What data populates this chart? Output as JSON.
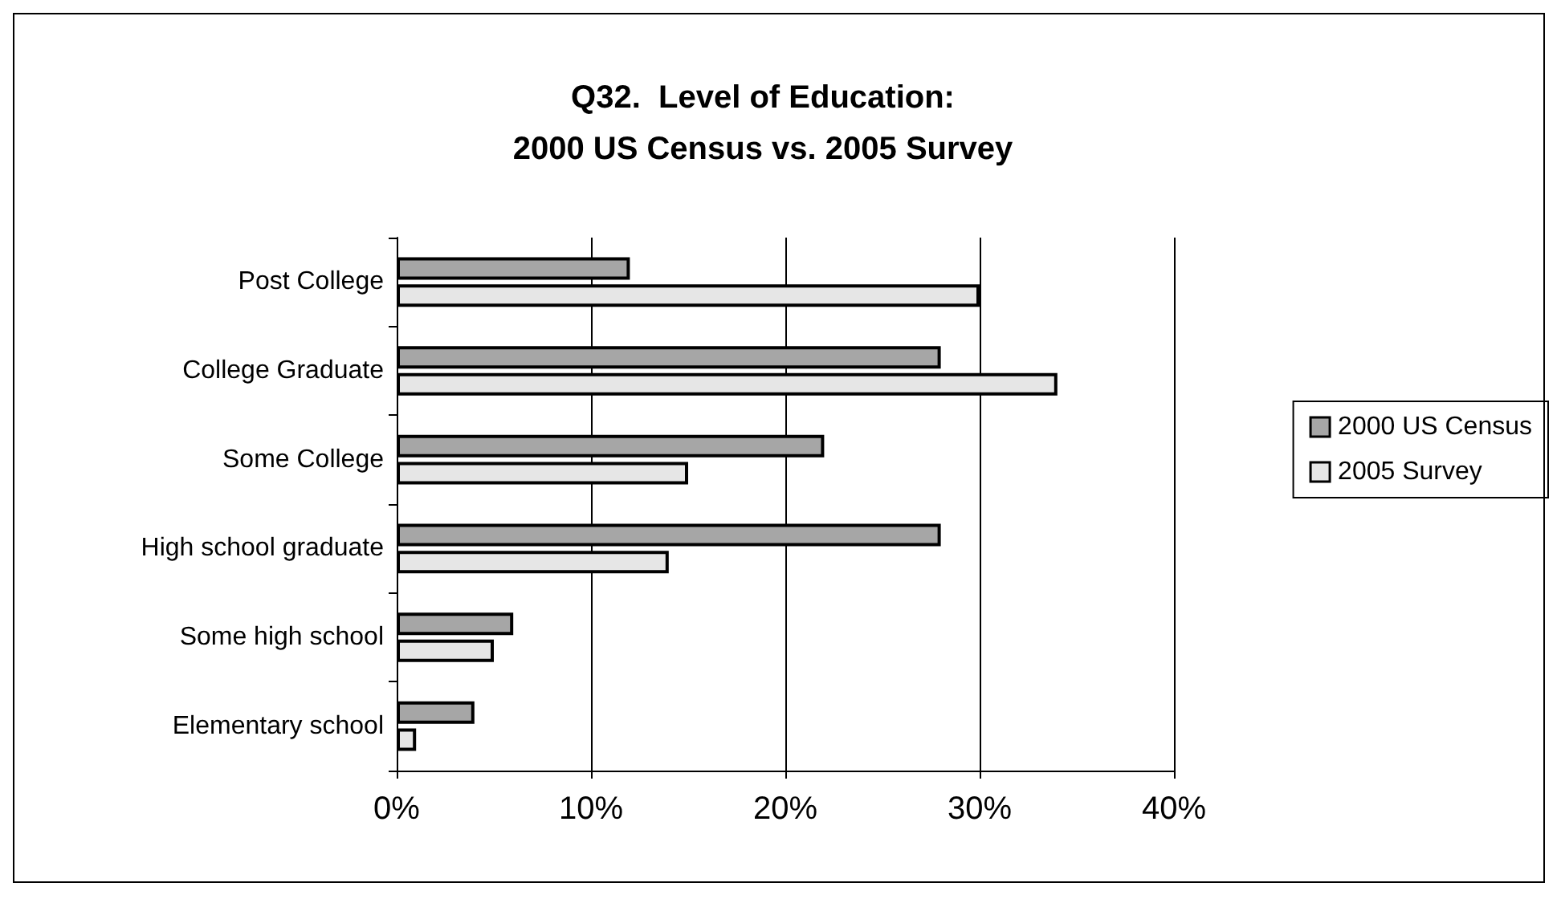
{
  "chart_data": {
    "type": "bar",
    "orientation": "horizontal",
    "title": "Q32.  Level of Education:\n2000 US Census vs. 2005 Survey",
    "categories": [
      "Post College",
      "College Graduate",
      "Some College",
      "High school graduate",
      "Some high school",
      "Elementary school"
    ],
    "series": [
      {
        "name": "2000 US Census",
        "color": "#a6a6a6",
        "values": [
          12,
          28,
          22,
          28,
          6,
          4
        ]
      },
      {
        "name": "2005 Survey",
        "color": "#e6e6e6",
        "values": [
          30,
          34,
          15,
          14,
          5,
          1
        ]
      }
    ],
    "xlim": [
      0,
      40
    ],
    "xticks": [
      {
        "value": 0,
        "label": "0%"
      },
      {
        "value": 10,
        "label": "10%"
      },
      {
        "value": 20,
        "label": "20%"
      },
      {
        "value": 30,
        "label": "30%"
      },
      {
        "value": 40,
        "label": "40%"
      }
    ],
    "grid": "x",
    "legend": "right"
  }
}
